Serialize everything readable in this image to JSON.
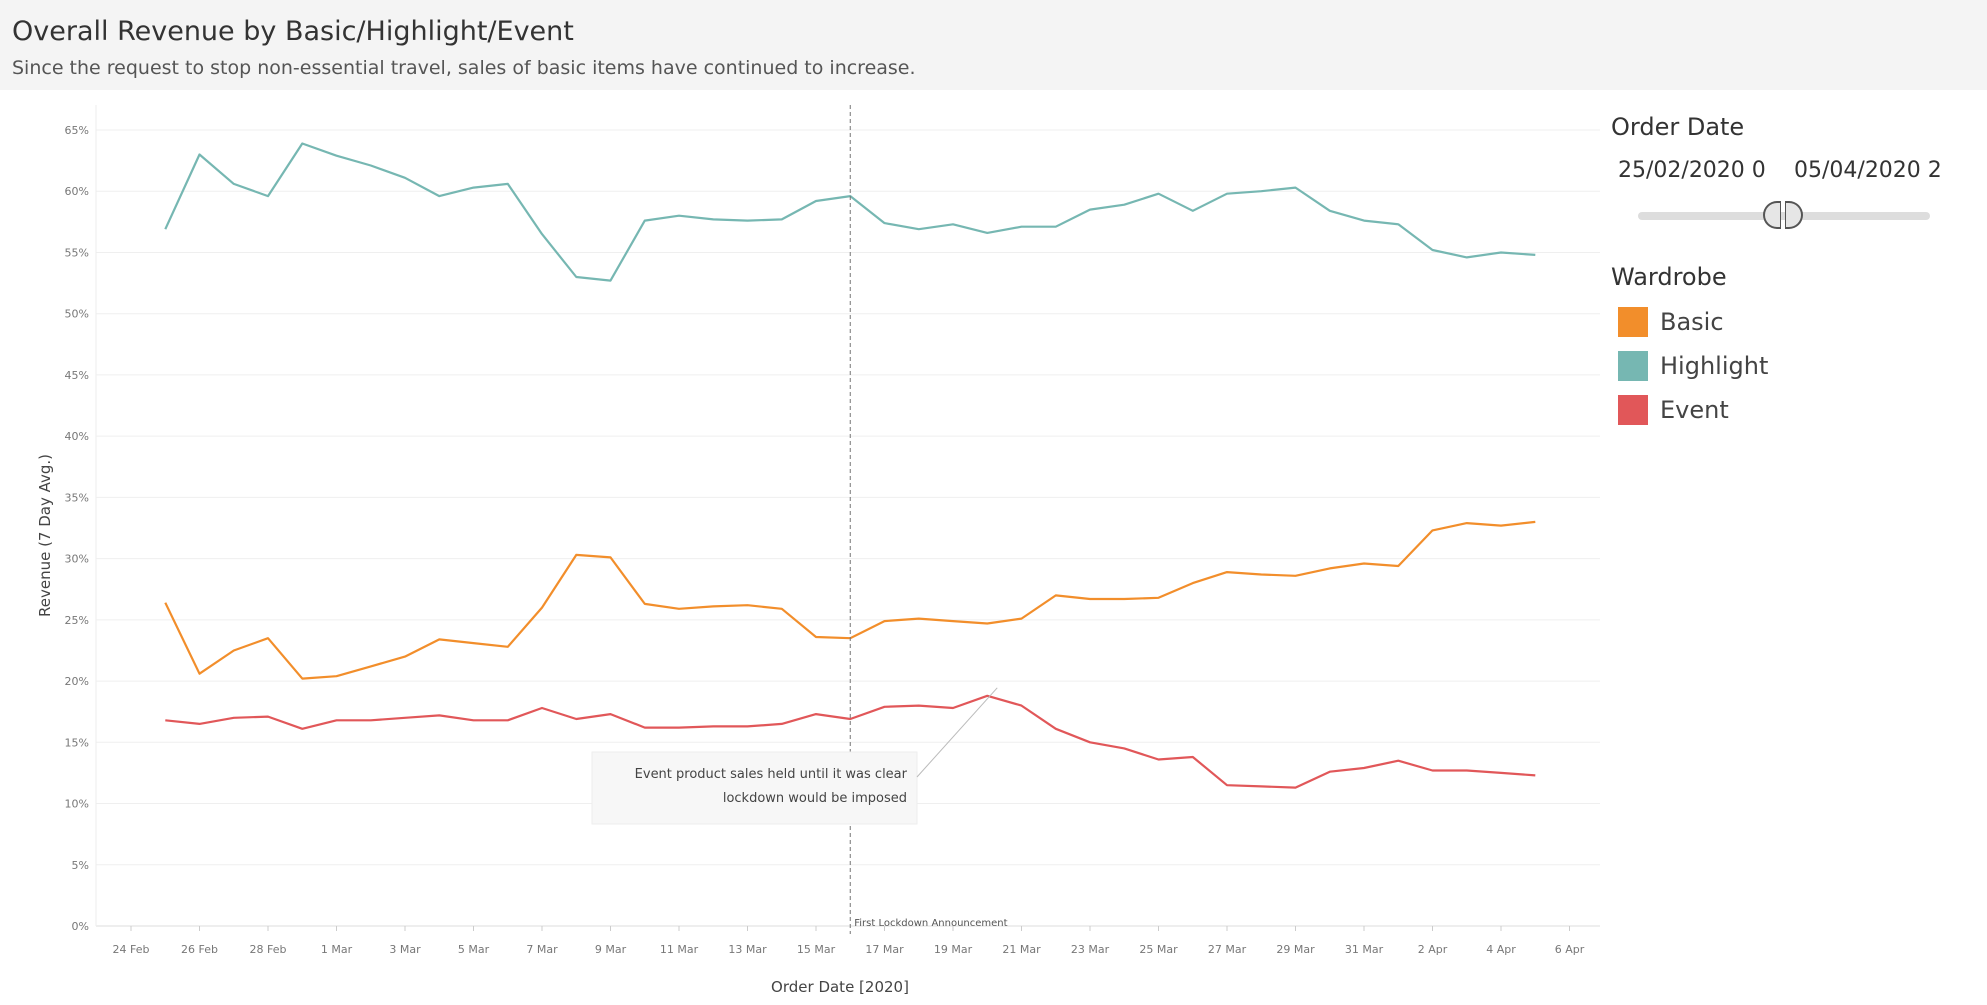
{
  "header": {
    "title": "Overall Revenue by Basic/Highlight/Event",
    "subtitle": "Since the request to stop non-essential travel, sales of basic items have continued to increase."
  },
  "filters": {
    "order_date": {
      "heading": "Order Date",
      "start_value": "25/02/2020 0",
      "end_value": "05/04/2020 2"
    }
  },
  "legend": {
    "heading": "Wardrobe",
    "items": [
      {
        "label": "Basic",
        "color": "#f28e2b"
      },
      {
        "label": "Highlight",
        "color": "#76b7b2"
      },
      {
        "label": "Event",
        "color": "#e15759"
      }
    ]
  },
  "chart_data": {
    "type": "line",
    "xlabel": "Order Date [2020]",
    "ylabel": "Revenue (7 Day Avg.)",
    "x_start": "2020-02-25",
    "x_ticks": [
      "24 Feb",
      "26 Feb",
      "28 Feb",
      "1 Mar",
      "3 Mar",
      "5 Mar",
      "7 Mar",
      "9 Mar",
      "11 Mar",
      "13 Mar",
      "15 Mar",
      "17 Mar",
      "19 Mar",
      "21 Mar",
      "23 Mar",
      "25 Mar",
      "27 Mar",
      "29 Mar",
      "31 Mar",
      "2 Apr",
      "4 Apr",
      "6 Apr"
    ],
    "y_ticks": [
      "0%",
      "5%",
      "10%",
      "15%",
      "20%",
      "25%",
      "30%",
      "35%",
      "40%",
      "45%",
      "50%",
      "55%",
      "60%",
      "65%"
    ],
    "ylim": [
      0,
      65
    ],
    "series": [
      {
        "name": "Highlight",
        "color": "#76b7b2",
        "values": [
          56.9,
          63.0,
          60.6,
          59.6,
          63.9,
          62.9,
          62.1,
          61.1,
          59.6,
          60.3,
          60.6,
          56.5,
          53.0,
          52.7,
          57.6,
          58.0,
          57.7,
          57.6,
          57.7,
          59.2,
          59.6,
          57.4,
          56.9,
          57.3,
          56.6,
          57.1,
          57.1,
          58.5,
          58.9,
          59.8,
          58.4,
          59.8,
          60.0,
          60.3,
          58.4,
          57.6,
          57.3,
          55.2,
          54.6,
          55.0,
          54.8
        ]
      },
      {
        "name": "Basic",
        "color": "#f28e2b",
        "values": [
          26.4,
          20.6,
          22.5,
          23.5,
          20.2,
          20.4,
          21.2,
          22.0,
          23.4,
          23.1,
          22.8,
          26.0,
          30.3,
          30.1,
          26.3,
          25.9,
          26.1,
          26.2,
          25.9,
          23.6,
          23.5,
          24.9,
          25.1,
          24.9,
          24.7,
          25.1,
          27.0,
          26.7,
          26.7,
          26.8,
          28.0,
          28.9,
          28.7,
          28.6,
          29.2,
          29.6,
          29.4,
          32.3,
          32.9,
          32.7,
          33.0
        ]
      },
      {
        "name": "Event",
        "color": "#e15759",
        "values": [
          16.8,
          16.5,
          17.0,
          17.1,
          16.1,
          16.8,
          16.8,
          17.0,
          17.2,
          16.8,
          16.8,
          17.8,
          16.9,
          17.3,
          16.2,
          16.2,
          16.3,
          16.3,
          16.5,
          17.3,
          16.9,
          17.9,
          18.0,
          17.8,
          18.8,
          18.0,
          16.1,
          15.0,
          14.5,
          13.6,
          13.8,
          11.5,
          11.4,
          11.3,
          12.6,
          12.9,
          13.5,
          12.7,
          12.7,
          12.5,
          12.3
        ]
      }
    ],
    "reference_line": {
      "date": "2020-03-16",
      "label": "First Lockdown Announcement"
    },
    "annotation": {
      "lines": [
        "Event product sales held until it was clear",
        "lockdown would be imposed"
      ],
      "target_date": "2020-03-20",
      "target_value": 18.8
    }
  }
}
